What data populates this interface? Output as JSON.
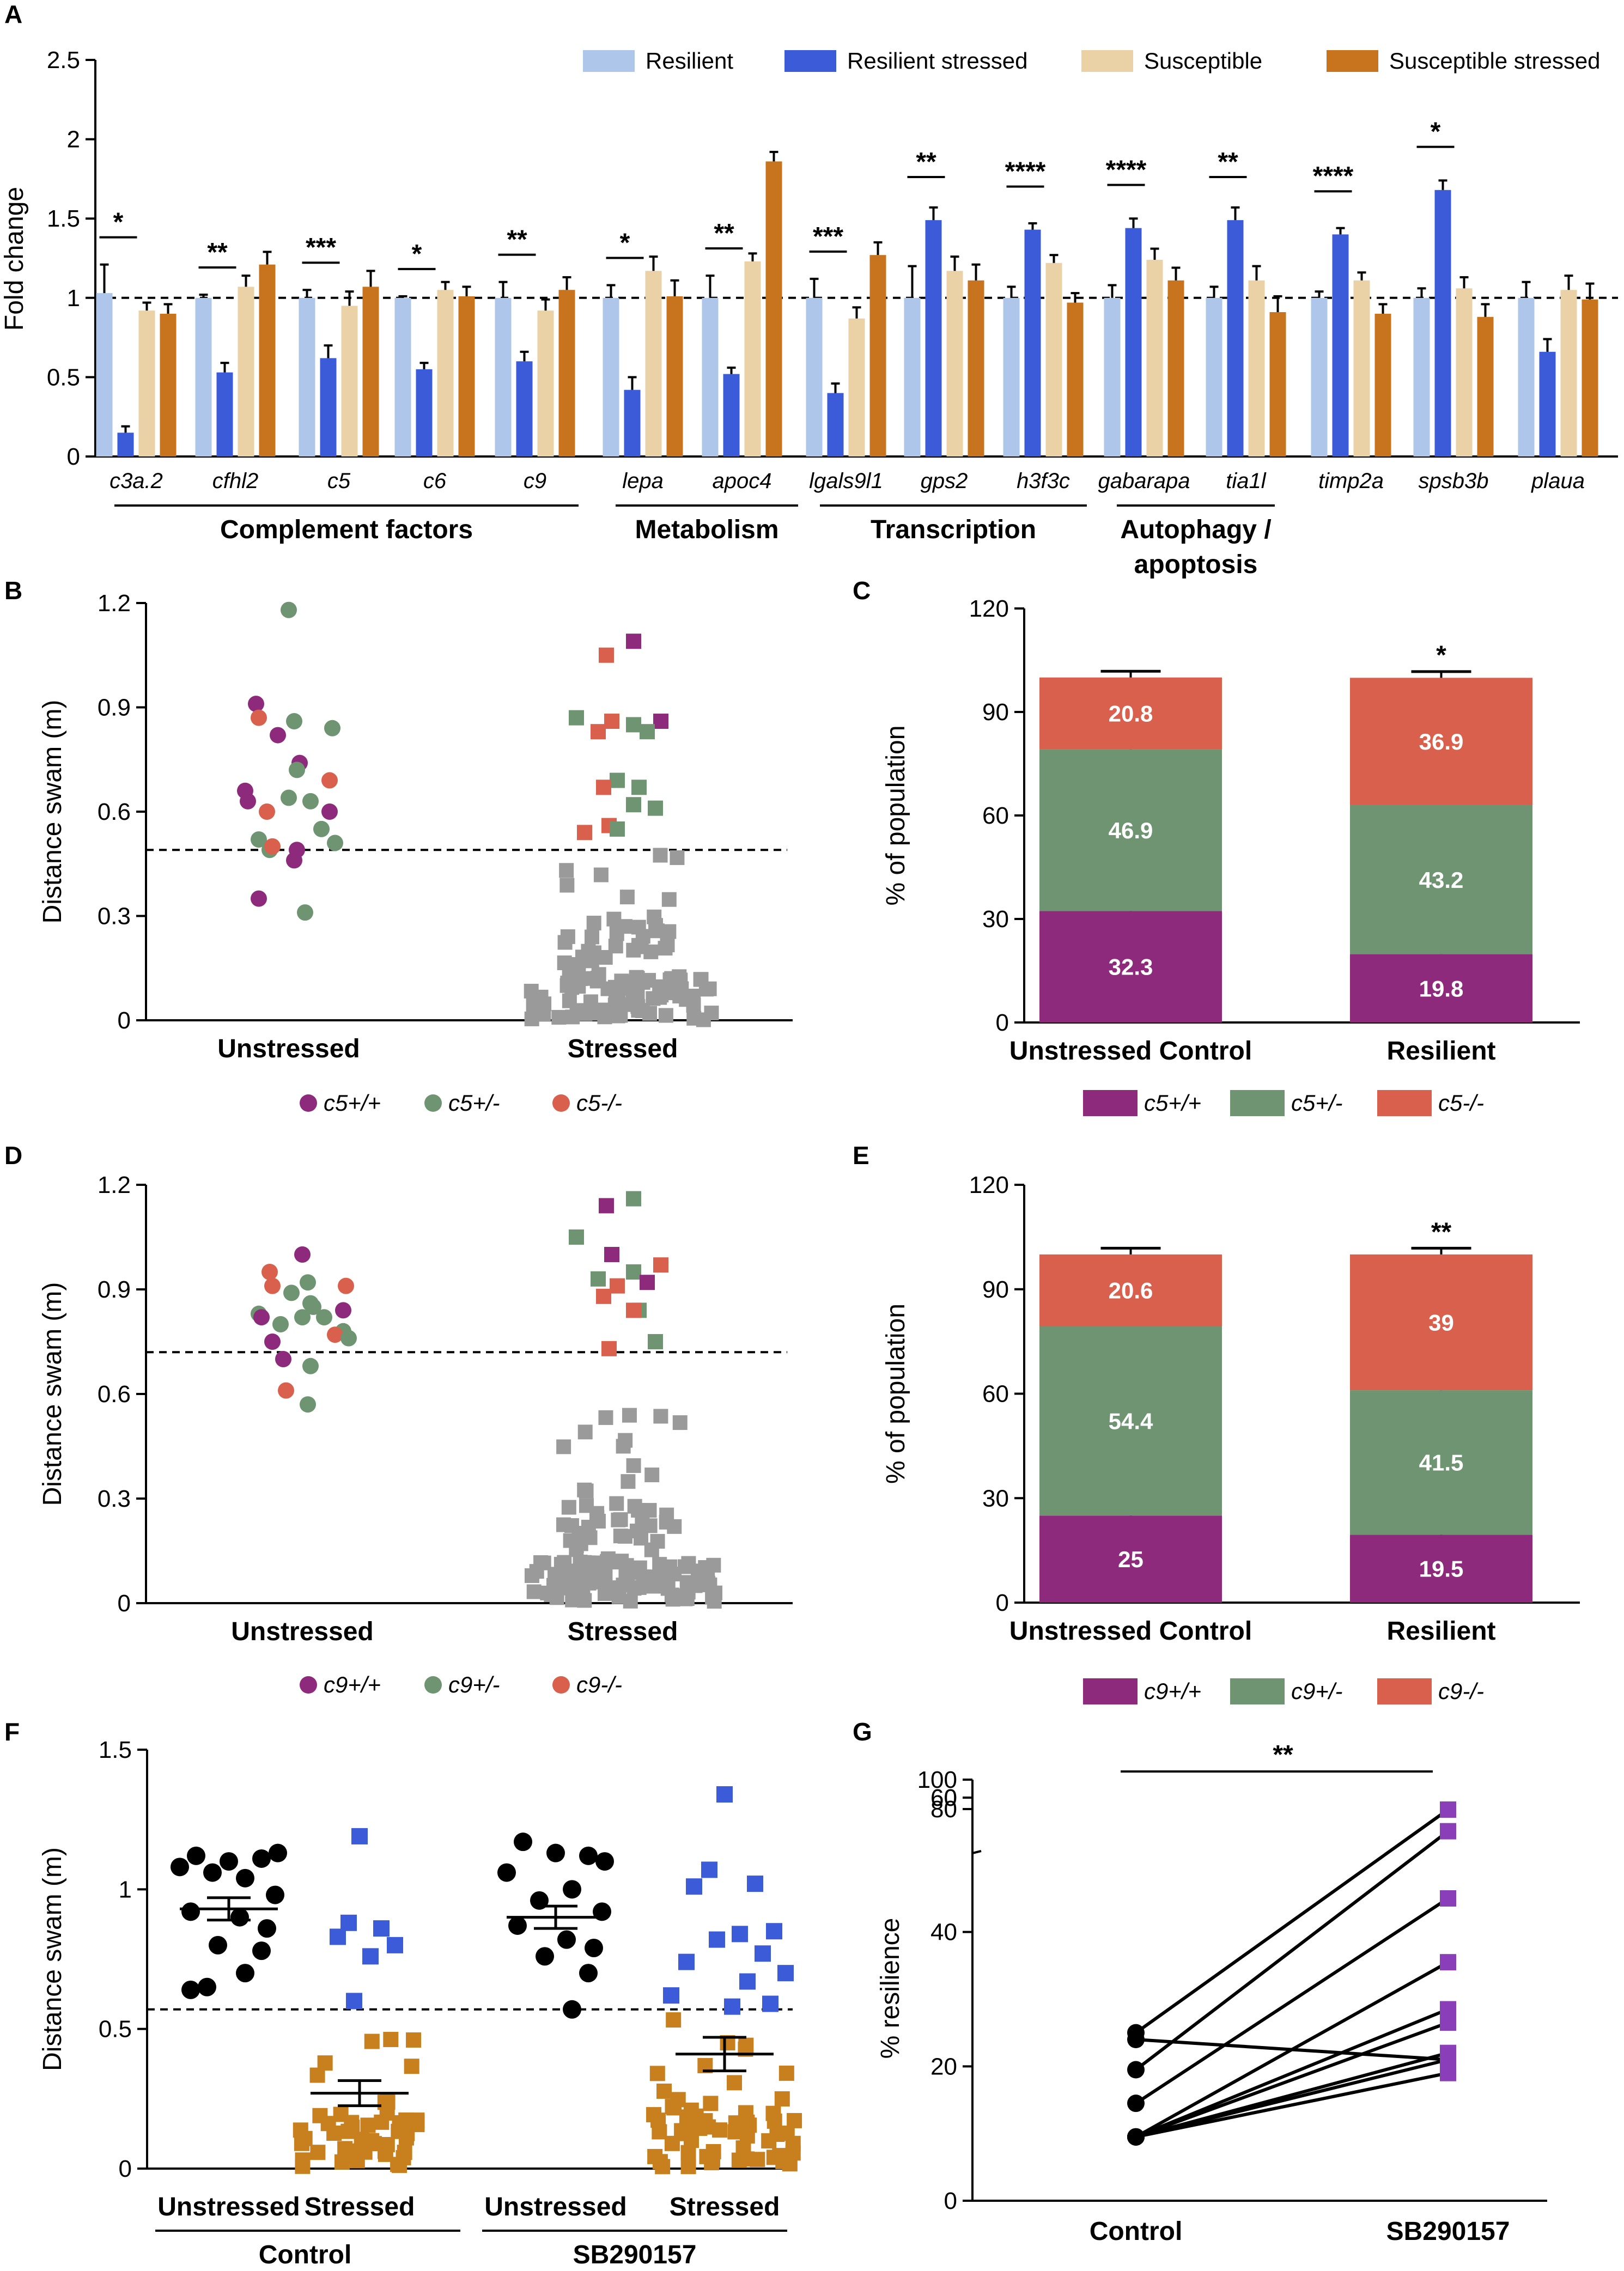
{
  "colors": {
    "resilient": "#aec6ea",
    "resilient_stressed": "#3b5bd9",
    "susceptible": "#ead2a6",
    "susceptible_stressed": "#c8731e",
    "purple": "#8e2a7c",
    "green": "#6f9472",
    "red": "#d8604c",
    "grey": "#9a9a9a",
    "blue": "#3b5bd9",
    "orange": "#c8801e",
    "black": "#000000",
    "violet": "#8a3fb8"
  },
  "chart_data": [
    {
      "panel": "A",
      "type": "bar",
      "ylabel": "Fold change",
      "ylim": [
        0,
        2.5
      ],
      "yticks": [
        "0",
        "0.5",
        "1",
        "1.5",
        "2",
        "2.5"
      ],
      "reference_line": 1,
      "legend": [
        "Resilient",
        "Resilient stressed",
        "Susceptible",
        "Susceptible stressed"
      ],
      "legend_placement": "top",
      "categories": [
        "c3a.2",
        "cfhl2",
        "c5",
        "c6",
        "c9",
        "lepa",
        "apoc4",
        "lgals9l1",
        "gps2",
        "h3f3c",
        "gabarapa",
        "tia1l",
        "timp2a",
        "spsb3b",
        "plaua"
      ],
      "series": [
        {
          "name": "Resilient",
          "values": [
            1.03,
            1.0,
            1.0,
            1.0,
            1.0,
            1.0,
            1.0,
            1.0,
            1.0,
            1.0,
            1.0,
            1.0,
            1.0,
            1.0,
            1.0
          ],
          "err": [
            0.18,
            0.02,
            0.05,
            0.01,
            0.1,
            0.08,
            0.14,
            0.12,
            0.2,
            0.07,
            0.08,
            0.07,
            0.04,
            0.06,
            0.1
          ]
        },
        {
          "name": "Resilient stressed",
          "values": [
            0.15,
            0.53,
            0.62,
            0.55,
            0.6,
            0.42,
            0.52,
            0.4,
            1.49,
            1.43,
            1.44,
            1.49,
            1.4,
            1.68,
            0.66
          ]
        },
        {
          "name": "Susceptible",
          "values": [
            0.92,
            1.07,
            0.95,
            1.05,
            0.92,
            1.17,
            1.23,
            0.87,
            1.17,
            1.22,
            1.24,
            1.11,
            1.11,
            1.06,
            1.05
          ]
        },
        {
          "name": "Susceptible stressed",
          "values": [
            0.9,
            1.21,
            1.07,
            1.01,
            1.05,
            1.01,
            1.86,
            1.27,
            1.11,
            0.97,
            1.11,
            0.91,
            0.9,
            0.88,
            0.99
          ]
        }
      ],
      "significance": [
        "*",
        "**",
        "***",
        "*",
        "**",
        "*",
        "**",
        "***",
        "**",
        "****",
        "****",
        "**",
        "****",
        "*",
        ""
      ],
      "groups": [
        "Complement factors",
        "Metabolism",
        "Transcription",
        "Autophagy /",
        "apoptosis"
      ]
    },
    {
      "panel": "B",
      "type": "scatter",
      "ylabel": "Distance swam (m)",
      "ylim": [
        0,
        1.2
      ],
      "yticks": [
        "0",
        "0.3",
        "0.6",
        "0.9",
        "1.2"
      ],
      "threshold": 0.49,
      "categories": [
        "Unstressed",
        "Stressed"
      ],
      "legend": [
        "c5+/+",
        "c5+/-",
        "c5-/-"
      ],
      "unstressed_points": [
        {
          "g": 1,
          "y": 1.18
        },
        {
          "g": 0,
          "y": 0.91
        },
        {
          "g": 2,
          "y": 0.87
        },
        {
          "g": 1,
          "y": 0.86
        },
        {
          "g": 1,
          "y": 0.84
        },
        {
          "g": 0,
          "y": 0.82
        },
        {
          "g": 0,
          "y": 0.74
        },
        {
          "g": 1,
          "y": 0.72
        },
        {
          "g": 2,
          "y": 0.69
        },
        {
          "g": 0,
          "y": 0.66
        },
        {
          "g": 1,
          "y": 0.64
        },
        {
          "g": 1,
          "y": 0.63
        },
        {
          "g": 0,
          "y": 0.63
        },
        {
          "g": 2,
          "y": 0.6
        },
        {
          "g": 0,
          "y": 0.6
        },
        {
          "g": 1,
          "y": 0.55
        },
        {
          "g": 1,
          "y": 0.52
        },
        {
          "g": 1,
          "y": 0.51
        },
        {
          "g": 1,
          "y": 0.49
        },
        {
          "g": 0,
          "y": 0.49
        },
        {
          "g": 2,
          "y": 0.5
        },
        {
          "g": 0,
          "y": 0.46
        },
        {
          "g": 0,
          "y": 0.35
        },
        {
          "g": 1,
          "y": 0.31
        }
      ],
      "stressed_points": [
        {
          "g": 0,
          "y": 1.09
        },
        {
          "g": 2,
          "y": 1.05
        },
        {
          "g": 1,
          "y": 0.87
        },
        {
          "g": 2,
          "y": 0.86
        },
        {
          "g": 0,
          "y": 0.86
        },
        {
          "g": 1,
          "y": 0.85
        },
        {
          "g": 2,
          "y": 0.83
        },
        {
          "g": 1,
          "y": 0.83
        },
        {
          "g": 1,
          "y": 0.69
        },
        {
          "g": 2,
          "y": 0.67
        },
        {
          "g": 1,
          "y": 0.67
        },
        {
          "g": 1,
          "y": 0.62
        },
        {
          "g": 1,
          "y": 0.61
        },
        {
          "g": 2,
          "y": 0.56
        },
        {
          "g": 2,
          "y": 0.54
        },
        {
          "g": 1,
          "y": 0.55
        }
      ],
      "stressed_grey_count": 120
    },
    {
      "panel": "C",
      "type": "bar",
      "stacked": true,
      "ylabel": "% of population",
      "ylim": [
        0,
        120
      ],
      "yticks": [
        "0",
        "30",
        "60",
        "90",
        "120"
      ],
      "categories": [
        "Unstressed Control",
        "Resilient"
      ],
      "legend": [
        "c5+/+",
        "c5+/-",
        "c5-/-"
      ],
      "series": [
        {
          "name": "c5+/+",
          "values": [
            32.3,
            19.8
          ],
          "labels": [
            "32.3",
            "19.8"
          ]
        },
        {
          "name": "c5+/-",
          "values": [
            46.9,
            43.2
          ],
          "labels": [
            "46.9",
            "43.2"
          ]
        },
        {
          "name": "c5-/-",
          "values": [
            20.8,
            36.9
          ],
          "labels": [
            "20.8",
            "36.9"
          ]
        }
      ],
      "significance": [
        "",
        "*"
      ]
    },
    {
      "panel": "D",
      "type": "scatter",
      "ylabel": "Distance swam (m)",
      "ylim": [
        0,
        1.2
      ],
      "yticks": [
        "0",
        "0.3",
        "0.6",
        "0.9",
        "1.2"
      ],
      "threshold": 0.72,
      "categories": [
        "Unstressed",
        "Stressed"
      ],
      "legend": [
        "c9+/+",
        "c9+/-",
        "c9-/-"
      ],
      "unstressed_points": [
        {
          "g": 0,
          "y": 1.0
        },
        {
          "g": 2,
          "y": 0.95
        },
        {
          "g": 2,
          "y": 0.91
        },
        {
          "g": 1,
          "y": 0.92
        },
        {
          "g": 2,
          "y": 0.91
        },
        {
          "g": 1,
          "y": 0.89
        },
        {
          "g": 1,
          "y": 0.85
        },
        {
          "g": 1,
          "y": 0.86
        },
        {
          "g": 0,
          "y": 0.84
        },
        {
          "g": 1,
          "y": 0.83
        },
        {
          "g": 1,
          "y": 0.82
        },
        {
          "g": 1,
          "y": 0.82
        },
        {
          "g": 0,
          "y": 0.82
        },
        {
          "g": 1,
          "y": 0.8
        },
        {
          "g": 1,
          "y": 0.78
        },
        {
          "g": 2,
          "y": 0.77
        },
        {
          "g": 0,
          "y": 0.75
        },
        {
          "g": 1,
          "y": 0.76
        },
        {
          "g": 0,
          "y": 0.7
        },
        {
          "g": 1,
          "y": 0.68
        },
        {
          "g": 2,
          "y": 0.61
        },
        {
          "g": 1,
          "y": 0.57
        }
      ],
      "stressed_points": [
        {
          "g": 1,
          "y": 1.16
        },
        {
          "g": 0,
          "y": 1.14
        },
        {
          "g": 1,
          "y": 1.05
        },
        {
          "g": 0,
          "y": 1.0
        },
        {
          "g": 2,
          "y": 0.97
        },
        {
          "g": 1,
          "y": 0.95
        },
        {
          "g": 1,
          "y": 0.93
        },
        {
          "g": 0,
          "y": 0.92
        },
        {
          "g": 2,
          "y": 0.91
        },
        {
          "g": 2,
          "y": 0.88
        },
        {
          "g": 1,
          "y": 0.84
        },
        {
          "g": 2,
          "y": 0.84
        },
        {
          "g": 1,
          "y": 0.75
        },
        {
          "g": 2,
          "y": 0.73
        }
      ],
      "stressed_grey_count": 130
    },
    {
      "panel": "E",
      "type": "bar",
      "stacked": true,
      "ylabel": "% of population",
      "ylim": [
        0,
        120
      ],
      "yticks": [
        "0",
        "30",
        "60",
        "90",
        "120"
      ],
      "categories": [
        "Unstressed Control",
        "Resilient"
      ],
      "legend": [
        "c9+/+",
        "c9+/-",
        "c9-/-"
      ],
      "series": [
        {
          "name": "c9+/+",
          "values": [
            25,
            19.5
          ],
          "labels": [
            "25",
            "19.5"
          ]
        },
        {
          "name": "c9+/-",
          "values": [
            54.4,
            41.5
          ],
          "labels": [
            "54.4",
            "41.5"
          ]
        },
        {
          "name": "c9-/-",
          "values": [
            20.6,
            39
          ],
          "labels": [
            "20.6",
            "39"
          ]
        }
      ],
      "significance": [
        "",
        "**"
      ]
    },
    {
      "panel": "F",
      "type": "scatter",
      "ylabel": "Distance swam (m)",
      "ylim": [
        0,
        1.5
      ],
      "yticks": [
        "0",
        "0.5",
        "1",
        "1.5"
      ],
      "threshold": 0.57,
      "categories": [
        "Unstressed",
        "Stressed",
        "Unstressed",
        "Stressed"
      ],
      "groups": [
        "Control",
        "SB290157"
      ],
      "means": [
        0.93,
        0.27,
        0.9,
        0.41
      ],
      "sem": [
        0.04,
        0.045,
        0.04,
        0.06
      ],
      "unstressed_control": [
        1.12,
        1.1,
        1.11,
        1.13,
        1.08,
        1.04,
        1.06,
        0.98,
        0.92,
        0.9,
        0.86,
        0.8,
        0.78,
        0.7,
        0.65,
        0.64
      ],
      "unstressed_sb": [
        1.17,
        1.13,
        1.12,
        1.1,
        1.06,
        1.0,
        0.96,
        0.92,
        0.87,
        0.82,
        0.79,
        0.76,
        0.7,
        0.57
      ],
      "stressed_control_blue": [
        1.19,
        0.88,
        0.86,
        0.83,
        0.8,
        0.76,
        0.6
      ],
      "stressed_control_orange_count": 50,
      "stressed_sb_blue": [
        1.34,
        1.07,
        1.02,
        1.01,
        0.85,
        0.84,
        0.82,
        0.77,
        0.74,
        0.7,
        0.67,
        0.62,
        0.59,
        0.58
      ],
      "stressed_sb_orange_count": 60
    },
    {
      "panel": "G",
      "type": "line",
      "ylabel": "% resilience",
      "ylim_lower": [
        0,
        60
      ],
      "ylim_upper": [
        60,
        100
      ],
      "yticks_lower": [
        "0",
        "20",
        "40",
        "60"
      ],
      "yticks_upper": [
        "60",
        "80",
        "100"
      ],
      "categories": [
        "Control",
        "SB290157"
      ],
      "pairs": [
        [
          25,
          80
        ],
        [
          24,
          21
        ],
        [
          19.5,
          55
        ],
        [
          14.5,
          45
        ],
        [
          9.5,
          35.5
        ],
        [
          9.5,
          28.5
        ],
        [
          9.5,
          26.5
        ],
        [
          9.5,
          19
        ],
        [
          9.5,
          22
        ],
        [
          9.5,
          21
        ]
      ],
      "significance": "**"
    }
  ],
  "panels": {
    "a": "A",
    "b": "B",
    "c": "C",
    "d": "D",
    "e": "E",
    "f": "F",
    "g": "G"
  }
}
